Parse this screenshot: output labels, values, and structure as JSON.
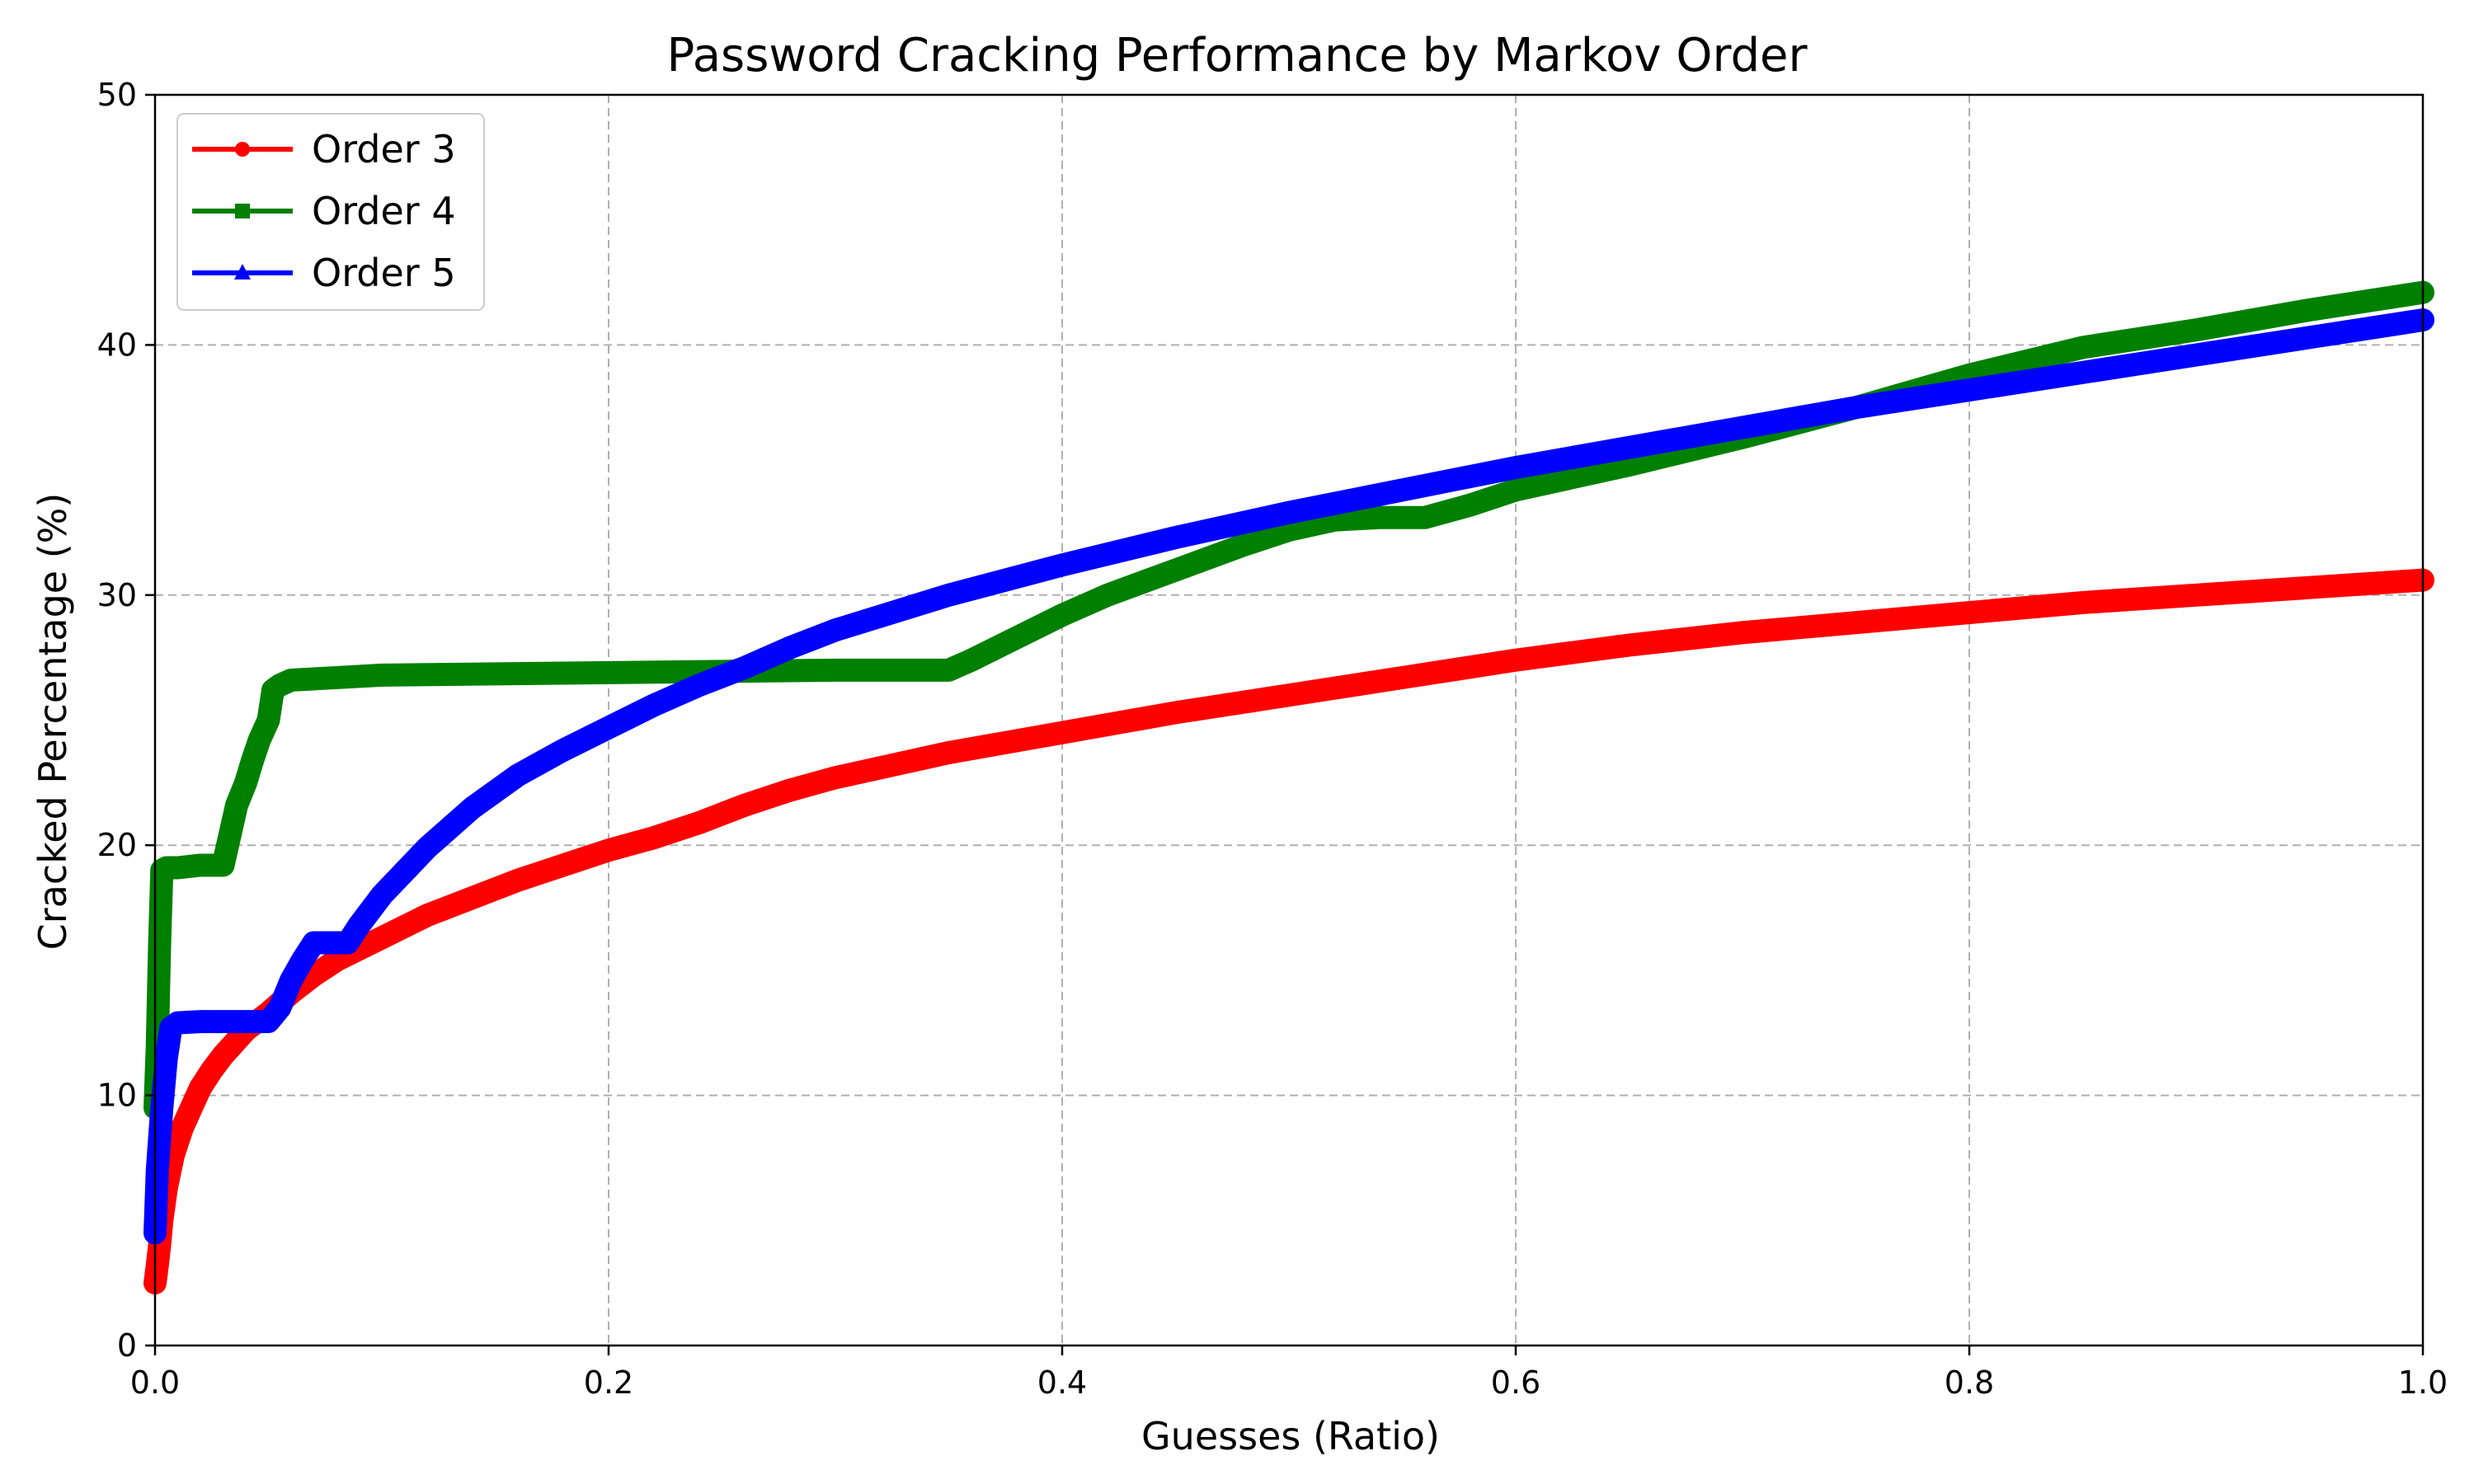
{
  "chart_data": {
    "type": "line",
    "title": "Password Cracking Performance by Markov Order",
    "xlabel": "Guesses (Ratio)",
    "ylabel": "Cracked Percentage (%)",
    "xlim": [
      0.0,
      1.0
    ],
    "ylim": [
      0,
      50
    ],
    "xticks": [
      "0.0",
      "0.2",
      "0.4",
      "0.6",
      "0.8",
      "1.0"
    ],
    "yticks": [
      "0",
      "10",
      "20",
      "30",
      "40",
      "50"
    ],
    "grid": true,
    "legend_position": "top-left",
    "series": [
      {
        "name": "Order 3",
        "color": "#ff0000",
        "marker": "circle",
        "x": [
          0.0,
          0.001,
          0.002,
          0.003,
          0.005,
          0.008,
          0.012,
          0.016,
          0.02,
          0.025,
          0.03,
          0.04,
          0.05,
          0.06,
          0.07,
          0.08,
          0.1,
          0.12,
          0.14,
          0.16,
          0.18,
          0.2,
          0.22,
          0.24,
          0.26,
          0.28,
          0.3,
          0.35,
          0.4,
          0.45,
          0.5,
          0.55,
          0.6,
          0.65,
          0.7,
          0.75,
          0.8,
          0.85,
          0.9,
          0.95,
          1.0
        ],
        "y": [
          2.5,
          3.2,
          4.0,
          5.0,
          6.3,
          7.6,
          8.7,
          9.5,
          10.3,
          11.0,
          11.6,
          12.6,
          13.3,
          14.1,
          14.8,
          15.4,
          16.3,
          17.2,
          17.9,
          18.6,
          19.2,
          19.8,
          20.3,
          20.9,
          21.6,
          22.2,
          22.7,
          23.7,
          24.5,
          25.3,
          26.0,
          26.7,
          27.4,
          28.0,
          28.5,
          28.9,
          29.3,
          29.7,
          30.0,
          30.3,
          30.6
        ]
      },
      {
        "name": "Order 4",
        "color": "#008000",
        "marker": "square",
        "x": [
          0.0,
          0.001,
          0.002,
          0.003,
          0.005,
          0.01,
          0.02,
          0.03,
          0.033,
          0.036,
          0.04,
          0.043,
          0.046,
          0.05,
          0.052,
          0.055,
          0.06,
          0.08,
          0.1,
          0.15,
          0.2,
          0.25,
          0.3,
          0.35,
          0.36,
          0.38,
          0.4,
          0.42,
          0.45,
          0.48,
          0.5,
          0.52,
          0.54,
          0.56,
          0.58,
          0.6,
          0.65,
          0.7,
          0.75,
          0.8,
          0.85,
          0.9,
          0.95,
          1.0
        ],
        "y": [
          9.5,
          12.0,
          16.0,
          19.0,
          19.1,
          19.1,
          19.2,
          19.2,
          20.4,
          21.6,
          22.5,
          23.4,
          24.2,
          25.0,
          26.2,
          26.4,
          26.6,
          26.7,
          26.8,
          26.85,
          26.9,
          26.95,
          27.0,
          27.0,
          27.4,
          28.3,
          29.2,
          30.0,
          31.0,
          32.0,
          32.6,
          33.0,
          33.1,
          33.1,
          33.6,
          34.2,
          35.2,
          36.3,
          37.5,
          38.8,
          39.9,
          40.6,
          41.4,
          42.1
        ]
      },
      {
        "name": "Order 5",
        "color": "#0000ff",
        "marker": "triangle",
        "x": [
          0.0,
          0.001,
          0.003,
          0.005,
          0.007,
          0.01,
          0.02,
          0.03,
          0.04,
          0.05,
          0.055,
          0.06,
          0.065,
          0.07,
          0.08,
          0.085,
          0.09,
          0.1,
          0.12,
          0.14,
          0.16,
          0.18,
          0.2,
          0.22,
          0.24,
          0.26,
          0.28,
          0.3,
          0.35,
          0.4,
          0.45,
          0.5,
          0.55,
          0.6,
          0.65,
          0.7,
          0.75,
          0.8,
          0.85,
          0.9,
          0.95,
          1.0
        ],
        "y": [
          4.5,
          7.0,
          9.5,
          11.5,
          12.7,
          12.9,
          12.95,
          12.95,
          12.95,
          12.95,
          13.5,
          14.6,
          15.4,
          16.1,
          16.1,
          16.1,
          16.8,
          18.0,
          19.9,
          21.5,
          22.8,
          23.8,
          24.7,
          25.6,
          26.4,
          27.1,
          27.9,
          28.6,
          30.0,
          31.2,
          32.3,
          33.3,
          34.2,
          35.1,
          35.9,
          36.7,
          37.5,
          38.2,
          38.9,
          39.6,
          40.3,
          41.0
        ]
      }
    ]
  }
}
